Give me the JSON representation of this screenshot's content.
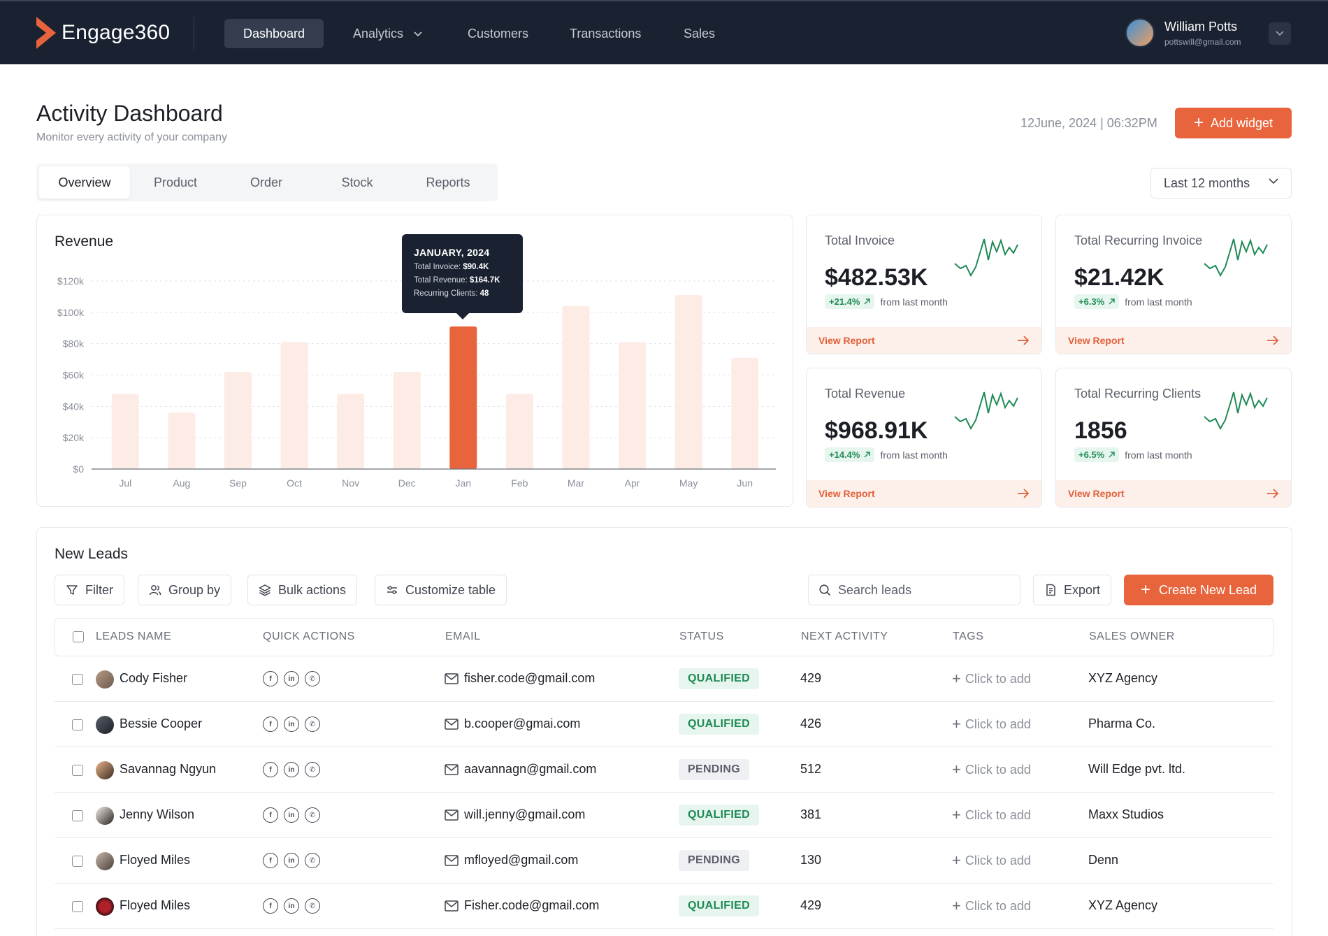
{
  "nav": {
    "brand": "Engage360",
    "items": [
      {
        "label": "Dashboard"
      },
      {
        "label": "Analytics"
      },
      {
        "label": "Customers"
      },
      {
        "label": "Transactions"
      },
      {
        "label": "Sales"
      }
    ],
    "user": {
      "name": "William Potts",
      "email": "pottswill@gmail.com"
    }
  },
  "header": {
    "title": "Activity Dashboard",
    "subtitle": "Monitor every activity of your company",
    "datetime": "12June, 2024 | 06:32PM",
    "add_widget_label": "Add widget"
  },
  "tabs": [
    {
      "label": "Overview"
    },
    {
      "label": "Product"
    },
    {
      "label": "Order"
    },
    {
      "label": "Stock"
    },
    {
      "label": "Reports"
    }
  ],
  "period": {
    "selected": "Last 12 months"
  },
  "revenue": {
    "title": "Revenue",
    "tooltip": {
      "title": "JANUARY, 2024",
      "total_invoice_label": "Total Invoice:",
      "total_invoice_value": "$90.4K",
      "total_revenue_label": "Total Revenue:",
      "total_revenue_value": "$164.7K",
      "recurring_label": "Recurring Clients:",
      "recurring_value": "48"
    }
  },
  "chart_data": {
    "type": "bar",
    "title": "Revenue",
    "categories": [
      "Jul",
      "Aug",
      "Sep",
      "Oct",
      "Nov",
      "Dec",
      "Jan",
      "Feb",
      "Mar",
      "Apr",
      "May",
      "Jun"
    ],
    "values": [
      48,
      36,
      62,
      81,
      48,
      62,
      91,
      48,
      104,
      81,
      111,
      71
    ],
    "highlight_index": 6,
    "ylim": [
      0,
      120
    ],
    "yticks": [
      0,
      20,
      40,
      60,
      80,
      100,
      120
    ],
    "ytick_labels": [
      "$0",
      "$20k",
      "$40k",
      "$60k",
      "$80k",
      "$100k",
      "$120k"
    ],
    "ylabel": "",
    "xlabel": "",
    "bar_color": "#fdece6",
    "highlight_color": "#e8643c"
  },
  "stats": [
    {
      "label": "Total Invoice",
      "value": "$482.53K",
      "change": "+21.4%",
      "change_text": "from last month",
      "link": "View Report"
    },
    {
      "label": "Total Recurring Invoice",
      "value": "$21.42K",
      "change": "+6.3%",
      "change_text": "from last month",
      "link": "View Report"
    },
    {
      "label": "Total Revenue",
      "value": "$968.91K",
      "change": "+14.4%",
      "change_text": "from last month",
      "link": "View Report"
    },
    {
      "label": "Total Recurring Clients",
      "value": "1856",
      "change": "+6.5%",
      "change_text": "from last month",
      "link": "View Report"
    }
  ],
  "leads": {
    "title": "New Leads",
    "toolbar": {
      "filter": "Filter",
      "group_by": "Group by",
      "bulk_actions": "Bulk actions",
      "customize": "Customize table",
      "search_placeholder": "Search leads",
      "export": "Export",
      "create": "Create New Lead"
    },
    "columns": [
      "LEADS NAME",
      "QUICK ACTIONS",
      "EMAIL",
      "STATUS",
      "NEXT ACTIVITY",
      "TAGS",
      "SALES OWNER"
    ],
    "rows": [
      {
        "name": "Cody Fisher",
        "email": "fisher.code@gmail.com",
        "status": "QUALIFIED",
        "next": "429",
        "tags": "Click to add",
        "owner": "XYZ Agency"
      },
      {
        "name": "Bessie Cooper",
        "email": "b.cooper@gmai.com",
        "status": "QUALIFIED",
        "next": "426",
        "tags": "Click to add",
        "owner": "Pharma Co."
      },
      {
        "name": "Savannag Ngyun",
        "email": "aavannagn@gmail.com",
        "status": "PENDING",
        "next": "512",
        "tags": "Click to add",
        "owner": "Will Edge pvt. ltd."
      },
      {
        "name": "Jenny Wilson",
        "email": "will.jenny@gmail.com",
        "status": "QUALIFIED",
        "next": "381",
        "tags": "Click to add",
        "owner": "Maxx Studios"
      },
      {
        "name": "Floyed Miles",
        "email": "mfloyed@gmail.com",
        "status": "PENDING",
        "next": "130",
        "tags": "Click to add",
        "owner": "Denn"
      },
      {
        "name": "Floyed Miles",
        "email": "Fisher.code@gmail.com",
        "status": "QUALIFIED",
        "next": "429",
        "tags": "Click to add",
        "owner": "XYZ Agency"
      }
    ]
  },
  "colors": {
    "accent": "#e8643c",
    "nav_bg": "#1a2231",
    "success": "#1f8a55"
  }
}
